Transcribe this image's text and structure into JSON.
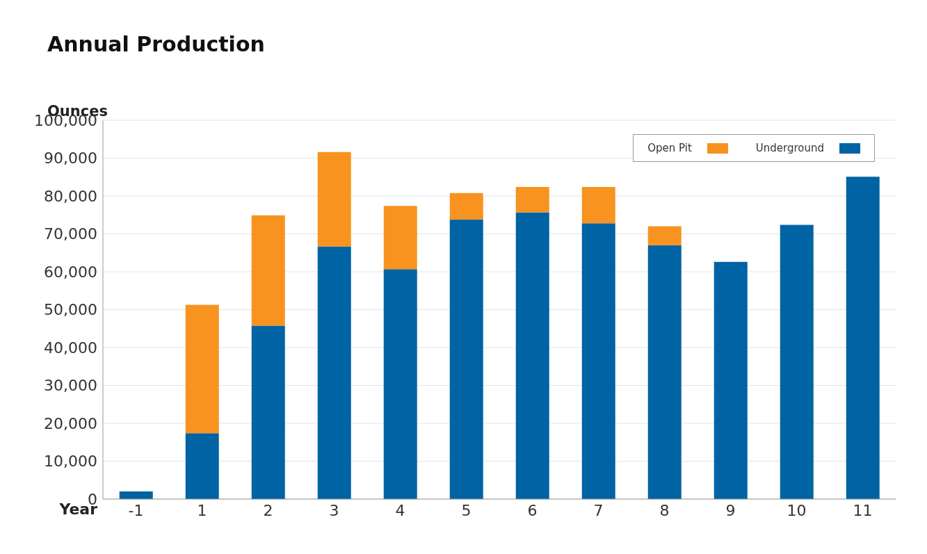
{
  "chart_data": {
    "type": "bar",
    "title": "Annual Production",
    "xlabel": "Year",
    "ylabel": "Ounces",
    "stacked": true,
    "categories": [
      "-1",
      "1",
      "2",
      "3",
      "4",
      "5",
      "6",
      "7",
      "8",
      "9",
      "10",
      "11"
    ],
    "series": [
      {
        "name": "Underground",
        "color": "#0063a3",
        "values": [
          2000,
          17400,
          45800,
          66700,
          60700,
          73800,
          75700,
          72800,
          67000,
          62600,
          72400,
          85100
        ]
      },
      {
        "name": "Open Pit",
        "color": "#f7931e",
        "values": [
          0,
          33900,
          29100,
          24900,
          16700,
          7000,
          6700,
          9600,
          5000,
          0,
          0,
          0
        ]
      }
    ],
    "ylim": [
      0,
      100000
    ],
    "yticks": [
      0,
      {
        "value": 10000,
        "label": "10,000"
      },
      {
        "value": 20000,
        "label": "20,000"
      },
      {
        "value": 30000,
        "label": "30,000"
      },
      {
        "value": 40000,
        "label": "40,000"
      },
      {
        "value": 50000,
        "label": "50,000"
      },
      {
        "value": 60000,
        "label": "60,000"
      },
      {
        "value": 70000,
        "label": "70,000"
      },
      {
        "value": 80000,
        "label": "80,000"
      },
      {
        "value": 90000,
        "label": "90,000"
      },
      {
        "value": 100000,
        "label": "100,000"
      }
    ],
    "grid": "y",
    "legend": "top right"
  }
}
